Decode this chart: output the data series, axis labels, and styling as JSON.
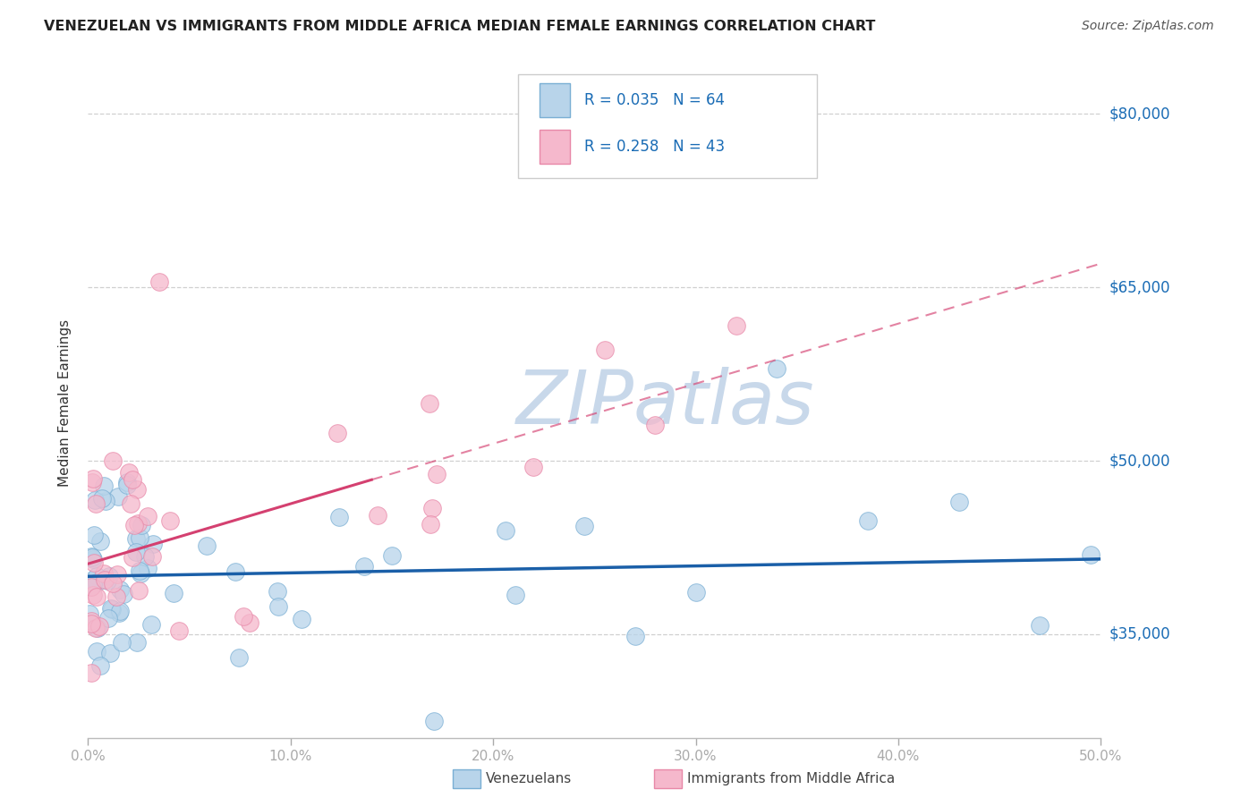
{
  "title": "VENEZUELAN VS IMMIGRANTS FROM MIDDLE AFRICA MEDIAN FEMALE EARNINGS CORRELATION CHART",
  "source": "Source: ZipAtlas.com",
  "ylabel": "Median Female Earnings",
  "color_blue_face": "#b8d4ea",
  "color_blue_edge": "#7aafd4",
  "color_pink_face": "#f5b8cc",
  "color_pink_edge": "#e888a8",
  "trend_blue_color": "#1a5fa8",
  "trend_pink_color": "#d44070",
  "watermark_text": "ZIPatlas",
  "watermark_color": "#c8d8ea",
  "legend1_text": "R = 0.035   N = 64",
  "legend2_text": "R = 0.258   N = 43",
  "legend_text_color": "#1a6cb5",
  "label_ven": "Venezuelans",
  "label_maf": "Immigrants from Middle Africa",
  "xmin": 0.0,
  "xmax": 50.0,
  "ymin": 26000,
  "ymax": 84000,
  "ytick_vals": [
    35000,
    50000,
    65000,
    80000
  ],
  "ytick_labels": [
    "$35,000",
    "$50,000",
    "$65,000",
    "$80,000"
  ],
  "xtick_vals": [
    0,
    10,
    20,
    30,
    40,
    50
  ],
  "xtick_labels": [
    "0.0%",
    "10.0%",
    "20.0%",
    "30.0%",
    "40.0%",
    "50.0%"
  ],
  "grid_color": "#d0d0d0",
  "axis_text_color": "#1a6cb5",
  "ylabel_color": "#333333",
  "title_color": "#222222",
  "source_color": "#555555",
  "bottom_label_color": "#444444",
  "seed": 77,
  "n_ven": 64,
  "n_maf": 43,
  "pink_solid_end": 14.0
}
